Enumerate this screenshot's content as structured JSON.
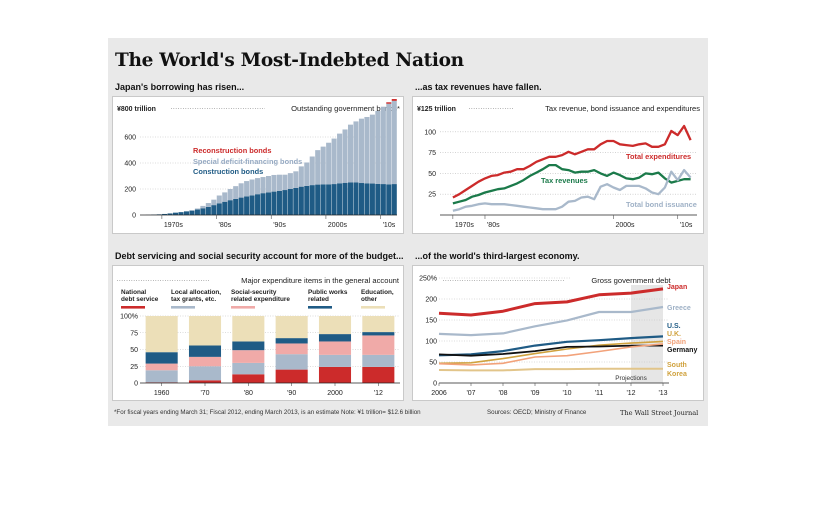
{
  "title": "The World's Most-Indebted Nation",
  "subtitles": {
    "c1": "Japan's borrowing has risen...",
    "c2": "...as tax revenues have fallen.",
    "c3": "Debt servicing and social security account for more of the budget...",
    "c4": "...of the world's third-largest economy."
  },
  "footer": {
    "note": "*For fiscal years ending March 31; Fiscal 2012, ending March 2013, is an estimate   Note: ¥1 trillion= $12.6 billion",
    "sources": "Sources: OECD; Ministry of Finance",
    "credit": "The Wall Street Journal"
  },
  "colors": {
    "red": "#cc2b2b",
    "lightblue": "#a9b9cb",
    "navy": "#1f5b85",
    "green": "#1b7a4a",
    "tan": "#ecdfb8",
    "pink": "#f0aaa8",
    "black": "#111111",
    "gold": "#d0a23e",
    "spain": "#f2a27a",
    "korea_line": "#e2c58a"
  },
  "chart_data": [
    {
      "type": "area",
      "title": "Outstanding government bonds*",
      "unit_label": "¥800 trillion",
      "ylim": [
        0,
        800
      ],
      "yticks": [
        0,
        200,
        400,
        600
      ],
      "xtick_labels": [
        {
          "year": 1970,
          "label": "1970s"
        },
        {
          "year": 1980,
          "label": "'80s"
        },
        {
          "year": 1990,
          "label": "'90s"
        },
        {
          "year": 2000,
          "label": "2000s"
        },
        {
          "year": 2010,
          "label": "'10s"
        }
      ],
      "x": [
        1966,
        1967,
        1968,
        1969,
        1970,
        1971,
        1972,
        1973,
        1974,
        1975,
        1976,
        1977,
        1978,
        1979,
        1980,
        1981,
        1982,
        1983,
        1984,
        1985,
        1986,
        1987,
        1988,
        1989,
        1990,
        1991,
        1992,
        1993,
        1994,
        1995,
        1996,
        1997,
        1998,
        1999,
        2000,
        2001,
        2002,
        2003,
        2004,
        2005,
        2006,
        2007,
        2008,
        2009,
        2010,
        2011,
        2012
      ],
      "series": [
        {
          "name": "Construction bonds",
          "color_key": "navy",
          "values": [
            0,
            1,
            3,
            5,
            8,
            12,
            18,
            22,
            28,
            34,
            42,
            52,
            62,
            76,
            90,
            102,
            114,
            124,
            134,
            143,
            151,
            160,
            168,
            174,
            180,
            186,
            192,
            200,
            208,
            218,
            224,
            230,
            234,
            236,
            236,
            238,
            244,
            248,
            250,
            250,
            246,
            244,
            242,
            240,
            238,
            236,
            238
          ]
        },
        {
          "name": "Special deficit-financing bonds",
          "color_key": "lightblue",
          "values": [
            0,
            0,
            0,
            0,
            0,
            0,
            0,
            0,
            0,
            2,
            8,
            18,
            30,
            42,
            60,
            72,
            86,
            98,
            110,
            118,
            122,
            124,
            124,
            126,
            128,
            124,
            118,
            122,
            128,
            156,
            180,
            220,
            265,
            290,
            320,
            350,
            382,
            410,
            445,
            470,
            495,
            510,
            530,
            560,
            595,
            620,
            640
          ]
        },
        {
          "name": "Reconstruction bonds",
          "color_key": "red",
          "values": [
            0,
            0,
            0,
            0,
            0,
            0,
            0,
            0,
            0,
            0,
            0,
            0,
            0,
            0,
            0,
            0,
            0,
            0,
            0,
            0,
            0,
            0,
            0,
            0,
            0,
            0,
            0,
            0,
            0,
            0,
            0,
            0,
            0,
            0,
            0,
            0,
            0,
            0,
            0,
            0,
            0,
            0,
            0,
            0,
            0,
            11,
            14
          ]
        }
      ],
      "label_order": [
        "Reconstruction bonds",
        "Special deficit-financing bonds",
        "Construction bonds"
      ]
    },
    {
      "type": "line",
      "title": "Tax revenue, bond issuance and expenditures",
      "unit_label": "¥125 trillion",
      "ylim": [
        0,
        125
      ],
      "yticks": [
        25,
        50,
        75,
        100
      ],
      "xtick_labels": [
        {
          "year": 1975,
          "label": "1970s"
        },
        {
          "year": 1980,
          "label": "'80s"
        },
        {
          "year": 2000,
          "label": "2000s"
        },
        {
          "year": 2010,
          "label": "'10s"
        }
      ],
      "x": [
        1975,
        1976,
        1977,
        1978,
        1979,
        1980,
        1981,
        1982,
        1983,
        1984,
        1985,
        1986,
        1987,
        1988,
        1989,
        1990,
        1991,
        1992,
        1993,
        1994,
        1995,
        1996,
        1997,
        1998,
        1999,
        2000,
        2001,
        2002,
        2003,
        2004,
        2005,
        2006,
        2007,
        2008,
        2009,
        2010,
        2011,
        2012
      ],
      "series": [
        {
          "name": "Total expenditures",
          "color_key": "red",
          "values": [
            21,
            25,
            30,
            35,
            40,
            44,
            47,
            48,
            51,
            52,
            55,
            55,
            59,
            64,
            67,
            70,
            70,
            72,
            76,
            73,
            76,
            79,
            79,
            85,
            89,
            89,
            85,
            84,
            83,
            85,
            86,
            82,
            82,
            85,
            101,
            96,
            107,
            90
          ]
        },
        {
          "name": "Tax revenues",
          "color_key": "green",
          "values": [
            14,
            16,
            18,
            22,
            24,
            27,
            29,
            31,
            32,
            35,
            38,
            42,
            47,
            51,
            55,
            60,
            60,
            55,
            54,
            51,
            52,
            52,
            54,
            50,
            47,
            51,
            48,
            44,
            43,
            45,
            50,
            49,
            51,
            44,
            39,
            41,
            43,
            43
          ]
        },
        {
          "name": "Total bond issuance",
          "color_key": "lightblue",
          "values": [
            5,
            7,
            10,
            11,
            13,
            14,
            13,
            13,
            13,
            12,
            11,
            10,
            9,
            8,
            7,
            7,
            7,
            10,
            16,
            17,
            21,
            22,
            19,
            34,
            37,
            33,
            30,
            35,
            35,
            35,
            32,
            27,
            25,
            33,
            52,
            42,
            54,
            45
          ]
        }
      ]
    },
    {
      "type": "bar",
      "stacked": true,
      "title": "Major expenditure items in the general account",
      "ylim": [
        0,
        100
      ],
      "yticks": [
        0,
        25,
        50,
        75,
        100
      ],
      "ytick_labels": [
        "0",
        "25",
        "50",
        "75",
        "100%"
      ],
      "categories": [
        "1960",
        "'70",
        "'80",
        "'90",
        "2000",
        "'12"
      ],
      "series": [
        {
          "name": "National debt service",
          "color_key": "red",
          "values": [
            1,
            4,
            13,
            20,
            24,
            24
          ]
        },
        {
          "name": "Local allocation, tax grants, etc.",
          "color_key": "lightblue",
          "values": [
            18,
            21,
            17,
            23,
            18,
            18
          ]
        },
        {
          "name": "Social-security related expenditure",
          "color_key": "pink",
          "values": [
            10,
            14,
            19,
            16,
            20,
            29
          ]
        },
        {
          "name": "Public works related",
          "color_key": "navy",
          "values": [
            17,
            17,
            13,
            8,
            11,
            5
          ]
        },
        {
          "name": "Education, other",
          "color_key": "tan",
          "values": [
            54,
            44,
            38,
            33,
            27,
            24
          ]
        }
      ]
    },
    {
      "type": "line",
      "title": "Gross government debt",
      "ylim": [
        0,
        250
      ],
      "yticks": [
        0,
        50,
        100,
        150,
        200,
        250
      ],
      "ytick_labels": [
        "0",
        "50",
        "100",
        "150",
        "200",
        "250%"
      ],
      "categories": [
        "2006",
        "'07",
        "'08",
        "'09",
        "'10",
        "'11",
        "'12",
        "'13"
      ],
      "projections_label": "Projections",
      "projections_from": "'12",
      "series": [
        {
          "name": "Japan",
          "color_key": "red",
          "values": [
            166,
            162,
            171,
            189,
            193,
            210,
            214,
            224
          ]
        },
        {
          "name": "Greece",
          "color_key": "lightblue",
          "values": [
            117,
            114,
            118,
            135,
            149,
            169,
            169,
            181
          ]
        },
        {
          "name": "U.S.",
          "color_key": "navy",
          "values": [
            66,
            68,
            76,
            89,
            98,
            102,
            107,
            111
          ]
        },
        {
          "name": "U.K.",
          "color_key": "gold",
          "values": [
            47,
            48,
            58,
            70,
            81,
            90,
            95,
            99
          ]
        },
        {
          "name": "Germany",
          "color_key": "black",
          "values": [
            68,
            65,
            69,
            76,
            86,
            87,
            89,
            89
          ]
        },
        {
          "name": "Spain",
          "color_key": "spain",
          "values": [
            46,
            43,
            47,
            62,
            65,
            75,
            86,
            93
          ]
        },
        {
          "name": "South Korea",
          "color_key": "korea_line",
          "values": [
            31,
            30,
            30,
            33,
            33,
            34,
            34,
            34
          ]
        }
      ],
      "labels": [
        "Japan",
        "Greece",
        "U.S.",
        "U.K.",
        "Spain",
        "Germany",
        "South",
        "Korea"
      ]
    }
  ]
}
